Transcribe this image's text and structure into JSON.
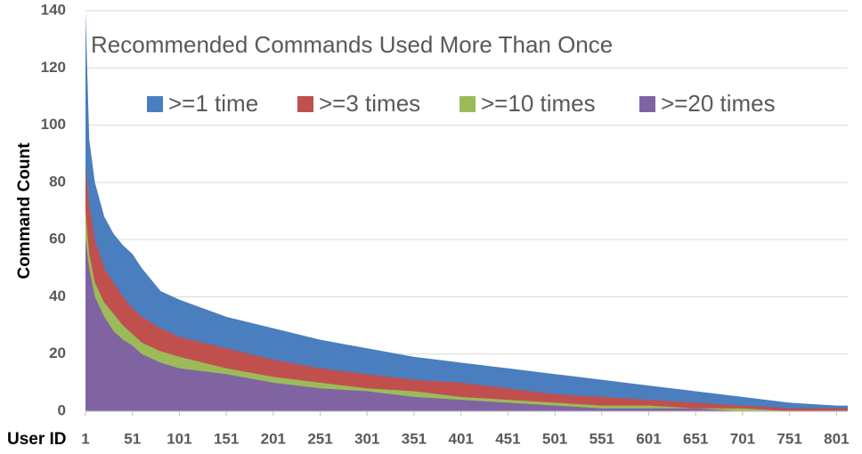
{
  "chart_data": {
    "type": "area",
    "title": "Recommended Commands Used More Than Once",
    "x_label": "User ID",
    "y_label": "Command Count",
    "x": [
      1,
      5,
      11,
      21,
      31,
      41,
      51,
      61,
      81,
      101,
      151,
      201,
      251,
      301,
      351,
      401,
      451,
      501,
      551,
      601,
      651,
      701,
      751,
      801,
      813
    ],
    "series": [
      {
        "name": ">=1 time",
        "color": "#4a7ebf",
        "values": [
          140,
          95,
          80,
          68,
          62,
          58,
          55,
          50,
          42,
          39,
          33,
          29,
          25,
          22,
          19,
          17,
          15,
          13,
          11,
          9,
          7,
          5,
          3,
          2,
          2
        ]
      },
      {
        "name": ">=3 times",
        "color": "#c0504d",
        "values": [
          85,
          72,
          60,
          50,
          45,
          40,
          36,
          33,
          29,
          26,
          22,
          18,
          15,
          13,
          11,
          10,
          8,
          6,
          5,
          4,
          3,
          2,
          1,
          1,
          1
        ]
      },
      {
        "name": ">=10 times",
        "color": "#9bbb59",
        "values": [
          70,
          55,
          45,
          38,
          34,
          30,
          27,
          24,
          21,
          19,
          15,
          12,
          10,
          8,
          7,
          5,
          4,
          3,
          2,
          2,
          1,
          1,
          0,
          0,
          0
        ]
      },
      {
        "name": ">=20 times",
        "color": "#8064a2",
        "values": [
          60,
          50,
          40,
          33,
          28,
          25,
          23,
          20,
          17,
          15,
          13,
          10,
          8,
          7,
          5,
          4,
          3,
          2,
          1,
          1,
          1,
          0,
          0,
          0,
          0
        ]
      }
    ],
    "xlim": [
      1,
      813
    ],
    "ylim": [
      0,
      140
    ],
    "xticks": [
      1,
      51,
      101,
      151,
      201,
      251,
      301,
      351,
      401,
      451,
      501,
      551,
      601,
      651,
      701,
      751,
      801
    ],
    "yticks": [
      0,
      20,
      40,
      60,
      80,
      100,
      120,
      140
    ],
    "grid": true
  }
}
